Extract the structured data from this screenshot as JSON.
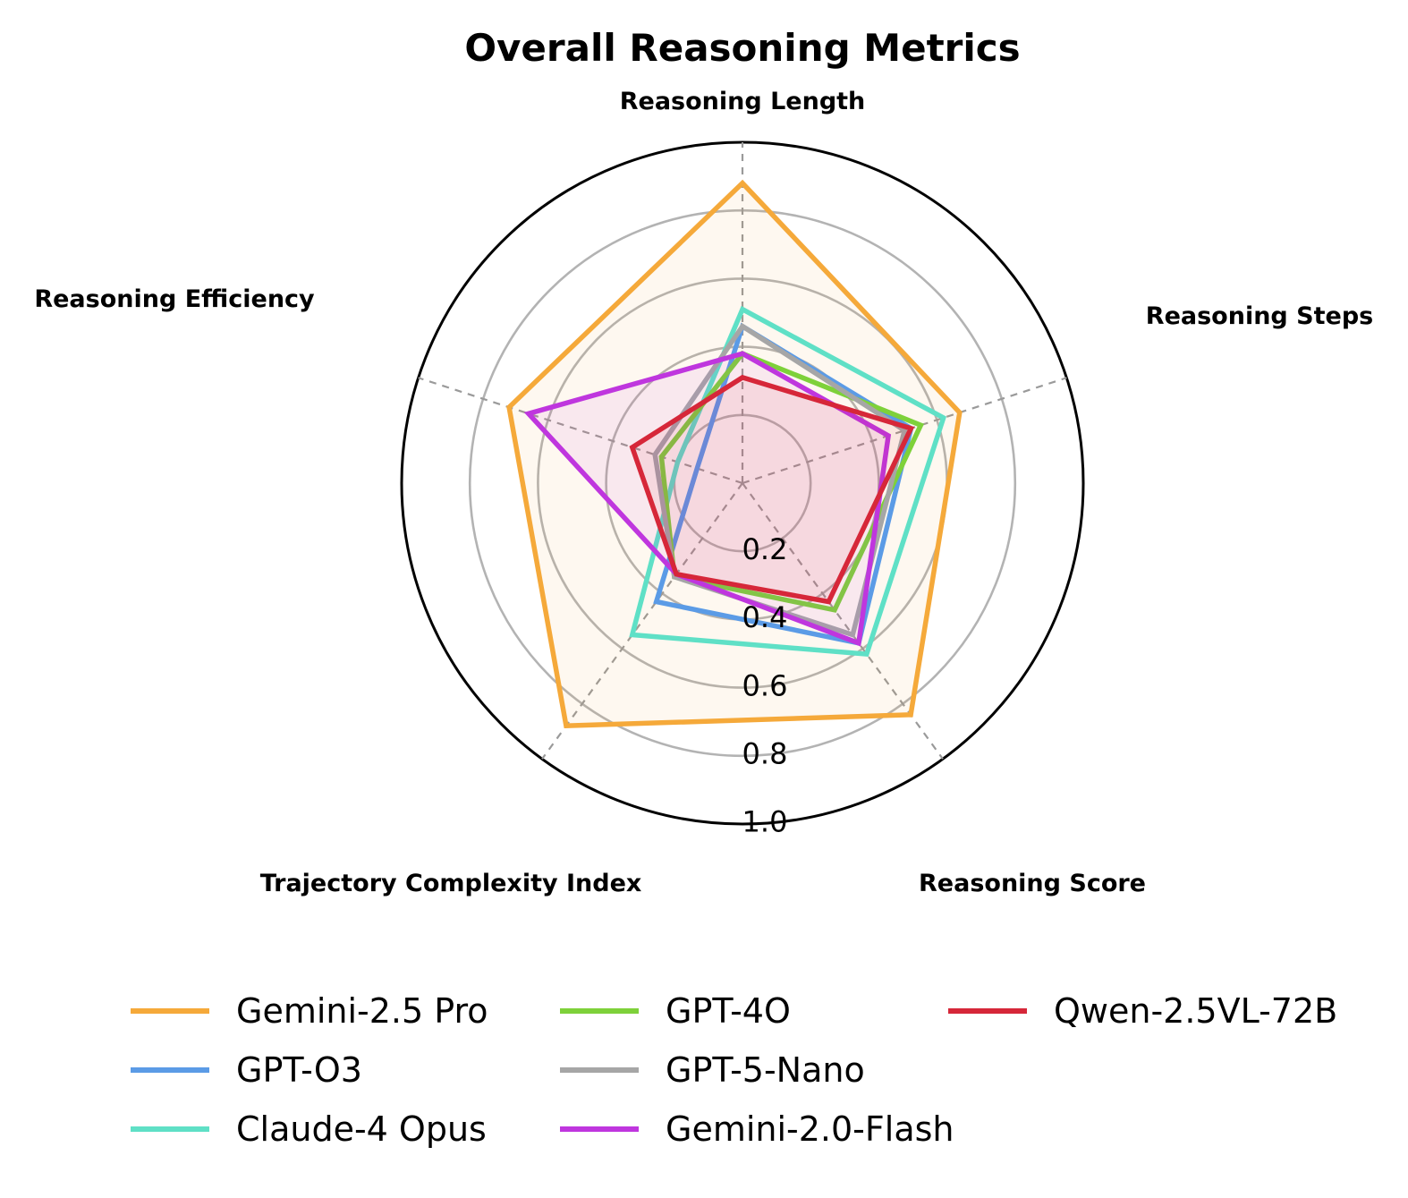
{
  "chart_data": {
    "type": "radar",
    "title": "Overall Reasoning Metrics",
    "axes": [
      "Reasoning Length",
      "Reasoning Steps",
      "Reasoning Score",
      "Trajectory Complexity Index",
      "Reasoning Efficiency"
    ],
    "rlim": [
      0,
      1.0
    ],
    "rticks": [
      "0.2",
      "0.4",
      "0.6",
      "0.8",
      "1.0"
    ],
    "grid": true,
    "legend_position": "bottom",
    "series": [
      {
        "name": "Gemini-2.5 Pro",
        "color": "#f5a93a",
        "fill": true,
        "values": [
          0.88,
          0.67,
          0.84,
          0.88,
          0.72
        ]
      },
      {
        "name": "GPT-O3",
        "color": "#5b9be6",
        "fill": false,
        "values": [
          0.46,
          0.52,
          0.58,
          0.43,
          0.14
        ]
      },
      {
        "name": "Claude-4 Opus",
        "color": "#5fe0c6",
        "fill": false,
        "values": [
          0.51,
          0.62,
          0.62,
          0.55,
          0.2
        ]
      },
      {
        "name": "GPT-4O",
        "color": "#7ed13a",
        "fill": false,
        "values": [
          0.38,
          0.55,
          0.46,
          0.34,
          0.25
        ]
      },
      {
        "name": "GPT-5-Nano",
        "color": "#a6a6a6",
        "fill": false,
        "values": [
          0.46,
          0.5,
          0.55,
          0.34,
          0.27
        ]
      },
      {
        "name": "Gemini-2.0-Flash",
        "color": "#bf36de",
        "fill": true,
        "values": [
          0.38,
          0.45,
          0.58,
          0.33,
          0.66
        ]
      },
      {
        "name": "Qwen-2.5VL-72B",
        "color": "#d62739",
        "fill": true,
        "values": [
          0.31,
          0.52,
          0.43,
          0.33,
          0.34
        ]
      }
    ]
  }
}
